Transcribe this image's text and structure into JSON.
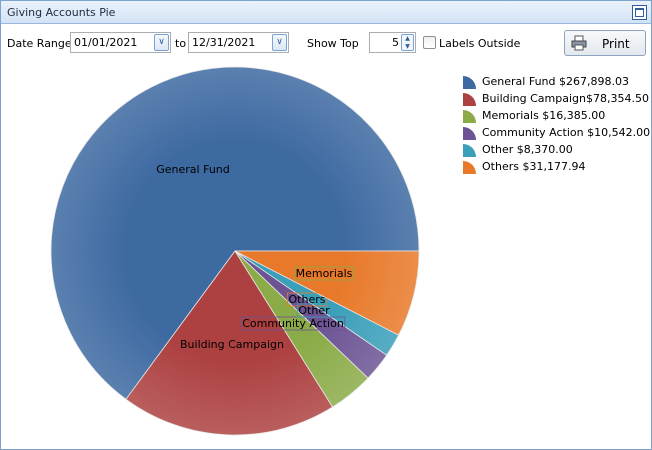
{
  "window": {
    "title": "Giving Accounts Pie"
  },
  "toolbar": {
    "date_range_label": "Date Range",
    "start_date": "01/01/2021",
    "to_label": "to",
    "end_date": "12/31/2021",
    "show_top_label": "Show Top",
    "show_top_value": "5",
    "labels_outside_label": "Labels Outside",
    "labels_outside_checked": false,
    "print_label": "Print"
  },
  "chart_data": {
    "type": "pie",
    "categories": [
      "General Fund",
      "Building Campaign",
      "Memorials",
      "Community Action",
      "Other",
      "Others"
    ],
    "values": [
      267898.03,
      78354.5,
      16385.0,
      10542.0,
      8370.0,
      31177.94
    ],
    "legend_text": [
      "General Fund $267,898.03",
      "Building Campaign$78,354.50",
      "Memorials $16,385.00",
      "Community Action $10,542.00",
      "Other $8,370.00",
      "Others $31,177.94"
    ],
    "colors": [
      "#3e6aa2",
      "#ad4141",
      "#8aab47",
      "#6c5494",
      "#3a9fb9",
      "#e8792a"
    ],
    "legend": "top-right"
  }
}
